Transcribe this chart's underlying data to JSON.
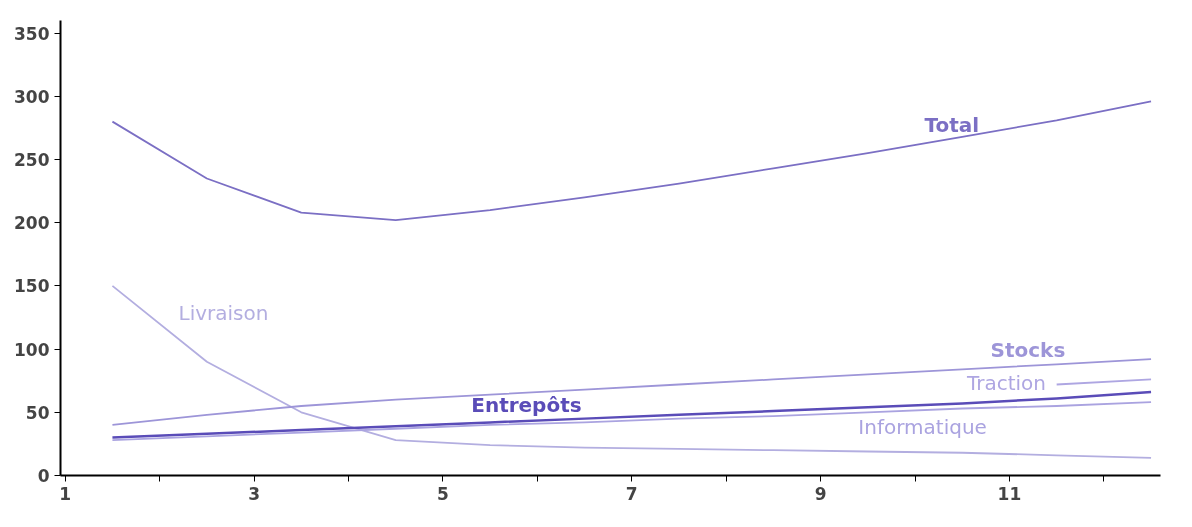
{
  "chart_data": {
    "type": "line",
    "x": [
      1.5,
      2.5,
      3.5,
      4.5,
      5.5,
      6.5,
      7.5,
      8.5,
      9.5,
      10.5,
      11.5,
      12.5
    ],
    "series": [
      {
        "name": "Total",
        "color": "#7b6fc4",
        "values": [
          280,
          235,
          208,
          202,
          210,
          220,
          231,
          243,
          255,
          268,
          281,
          296
        ]
      },
      {
        "name": "Livraison",
        "color": "#b3aee0",
        "values": [
          150,
          90,
          50,
          28,
          24,
          22,
          21,
          20,
          19,
          18,
          16,
          14
        ]
      },
      {
        "name": "Stocks",
        "color": "#9d95d8",
        "values": [
          40,
          48,
          55,
          60,
          64,
          68,
          72,
          76,
          80,
          84,
          88,
          92
        ]
      },
      {
        "name": "Traction",
        "color": "#aea6e2",
        "x": [
          11.5,
          12.5
        ],
        "values": [
          72,
          76
        ]
      },
      {
        "name": "Entrepôts",
        "color": "#5a4cb8",
        "values": [
          30,
          33,
          36,
          39,
          42,
          45,
          48,
          51,
          54,
          57,
          61,
          66
        ]
      },
      {
        "name": "Informatique",
        "color": "#aaa3e0",
        "values": [
          28,
          31,
          34,
          37,
          40,
          42,
          45,
          47,
          50,
          53,
          55,
          58
        ]
      }
    ],
    "xlim": [
      0.95,
      12.6
    ],
    "ylim": [
      0,
      360
    ],
    "xticks": [
      1,
      {
        "value": 2,
        "label": null
      },
      3,
      {
        "value": 4,
        "label": null
      },
      5,
      {
        "value": 6,
        "label": null
      },
      7,
      {
        "value": 8,
        "label": null
      },
      9,
      {
        "value": 10,
        "label": null
      },
      11,
      {
        "value": 12,
        "label": null
      }
    ],
    "yticks": [
      0,
      50,
      100,
      150,
      200,
      250,
      300,
      350
    ],
    "grid": false,
    "marker": "none",
    "line_style": "solid"
  }
}
